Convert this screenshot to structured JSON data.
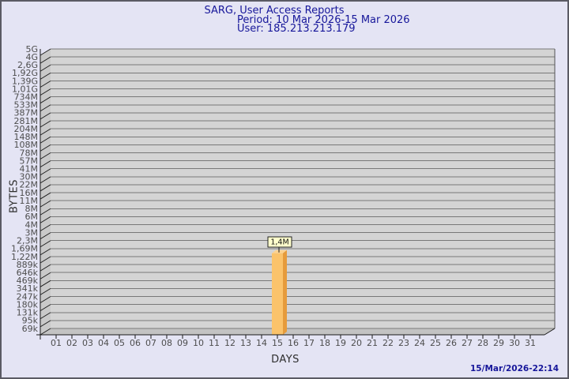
{
  "header": {
    "title": "SARG, User Access Reports",
    "period": "Period: 10 Mar 2026-15 Mar 2026",
    "user": "User: 185.213.213.179"
  },
  "footer": {
    "timestamp": "15/Mar/2026-22:14"
  },
  "colors": {
    "background": "#e4e4f4",
    "frame_border": "#5a5a64",
    "title_text": "#16169a",
    "timestamp_text": "#16169a",
    "back_wall": "#d4d4d4",
    "side_wall": "#c9c9c9",
    "floor": "#c3c3c3",
    "gridline": "#787878",
    "axis_line": "#1a1a1a",
    "tick_text": "#4d4d4d",
    "bar_front": "#fbc36b",
    "bar_side": "#e69b3c",
    "bar_top": "#fdd28e",
    "value_box_bg": "#ffffcc",
    "value_box_border": "#222222",
    "value_box_text": "#111111"
  },
  "chart_data": {
    "type": "bar",
    "title": "SARG, User Access Reports",
    "subtitle": "Period: 10 Mar 2026-15 Mar 2026 / User: 185.213.213.179",
    "xlabel": "DAYS",
    "ylabel": "BYTES",
    "y_scale": "log",
    "ylim": [
      69000,
      5000000000
    ],
    "y_tick_labels": [
      "5G",
      "4G",
      "2,6G",
      "1,92G",
      "1,39G",
      "1,01G",
      "734M",
      "533M",
      "387M",
      "281M",
      "204M",
      "148M",
      "108M",
      "78M",
      "57M",
      "41M",
      "30M",
      "22M",
      "16M",
      "11M",
      "8M",
      "6M",
      "4M",
      "3M",
      "2,3M",
      "1,69M",
      "1,22M",
      "889k",
      "646k",
      "469k",
      "341k",
      "247k",
      "180k",
      "131k",
      "95k",
      "69k"
    ],
    "categories": [
      "01",
      "02",
      "03",
      "04",
      "05",
      "06",
      "07",
      "08",
      "09",
      "10",
      "11",
      "12",
      "13",
      "14",
      "15",
      "16",
      "17",
      "18",
      "19",
      "20",
      "21",
      "22",
      "23",
      "24",
      "25",
      "26",
      "27",
      "28",
      "29",
      "30",
      "31"
    ],
    "values": [
      0,
      0,
      0,
      0,
      0,
      0,
      0,
      0,
      0,
      0,
      0,
      0,
      0,
      0,
      1400000,
      0,
      0,
      0,
      0,
      0,
      0,
      0,
      0,
      0,
      0,
      0,
      0,
      0,
      0,
      0,
      0
    ],
    "value_labels": [
      "",
      "",
      "",
      "",
      "",
      "",
      "",
      "",
      "",
      "",
      "",
      "",
      "",
      "",
      "1,4M",
      "",
      "",
      "",
      "",
      "",
      "",
      "",
      "",
      "",
      "",
      "",
      "",
      "",
      "",
      "",
      ""
    ],
    "grid": true,
    "legend": ""
  }
}
